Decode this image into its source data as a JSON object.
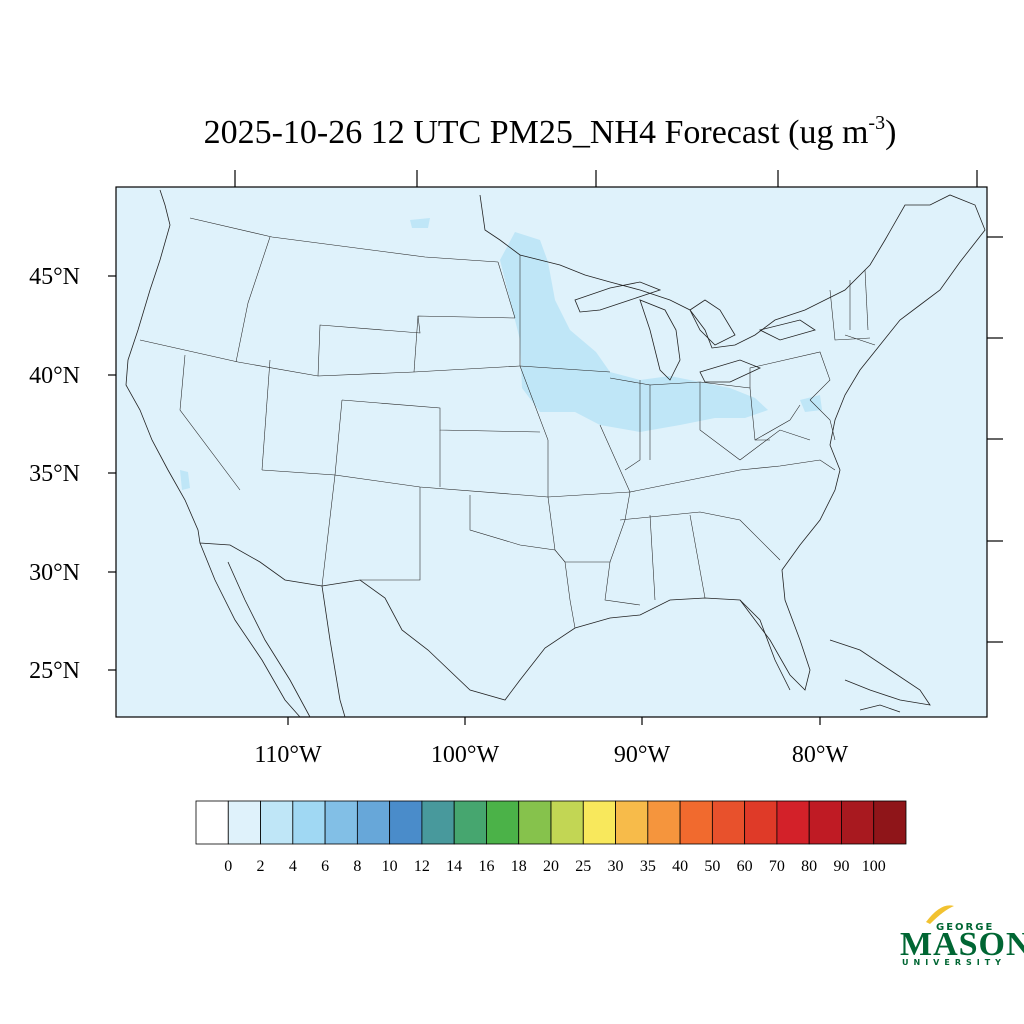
{
  "map": {
    "title": "2025-10-26 12 UTC PM25_NH4 Forecast (ug m",
    "title_exponent": "-3",
    "title_close": ")",
    "background_color": "#dff2fb",
    "latitude_labels": [
      "45°N",
      "40°N",
      "35°N",
      "30°N",
      "25°N"
    ],
    "longitude_labels": [
      "110°W",
      "100°W",
      "90°W",
      "80°W"
    ]
  },
  "colorbar": {
    "labels": [
      "0",
      "2",
      "4",
      "6",
      "8",
      "10",
      "12",
      "14",
      "16",
      "18",
      "20",
      "25",
      "30",
      "35",
      "40",
      "50",
      "60",
      "70",
      "80",
      "90",
      "100"
    ],
    "colors": [
      "#ffffff",
      "#dff2fb",
      "#bfe6f7",
      "#a0d8f3",
      "#82bfe6",
      "#67a7d9",
      "#4a8cca",
      "#48999c",
      "#46a66f",
      "#4bb248",
      "#86c24c",
      "#c2d654",
      "#f8e85c",
      "#f7bb4a",
      "#f5953d",
      "#f16a2e",
      "#e8512c",
      "#df3a28",
      "#d32129",
      "#bf1b24",
      "#a8191f",
      "#8f1519"
    ]
  },
  "logo": {
    "line1": "GEORGE",
    "line2": "MASON",
    "line3": "UNIVERSITY",
    "color": "#006633",
    "accent": "#f2c230"
  }
}
